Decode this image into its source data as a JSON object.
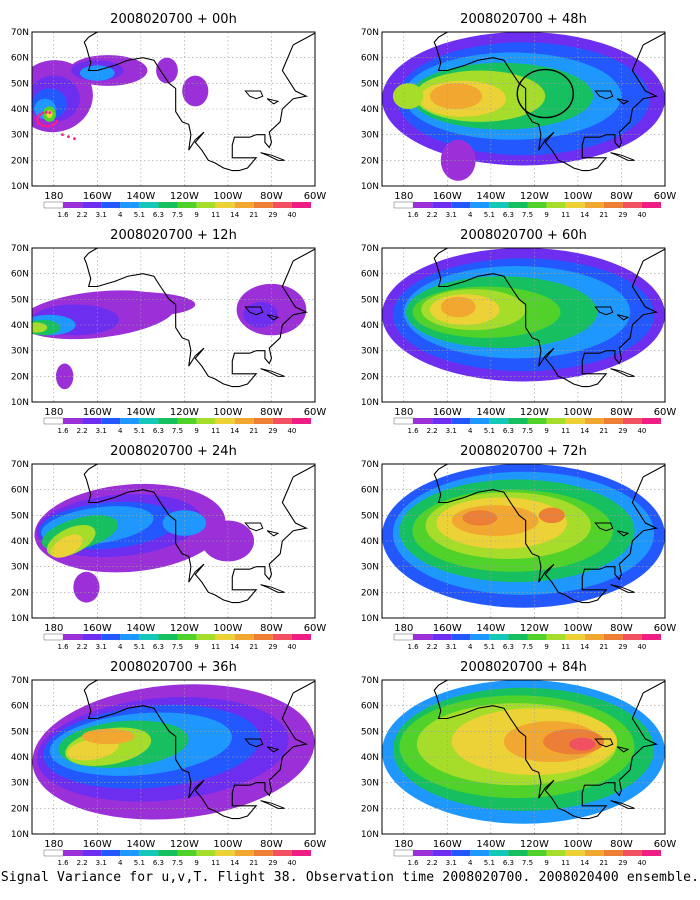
{
  "panel_titles": [
    "2008020700 + 00h",
    "2008020700 + 12h",
    "2008020700 + 24h",
    "2008020700 + 36h",
    "2008020700 + 48h",
    "2008020700 + 60h",
    "2008020700 + 72h",
    "2008020700 + 84h"
  ],
  "lat_labels": [
    "70N",
    "60N",
    "50N",
    "40N",
    "30N",
    "20N",
    "10N"
  ],
  "lon_labels": [
    "180",
    "160W",
    "140W",
    "120W",
    "100W",
    "80W",
    "60W"
  ],
  "colorbar": {
    "labels": [
      "1.6",
      "2.2",
      "3.1",
      "4",
      "5.1",
      "6.3",
      "7.5",
      "9",
      "11",
      "14",
      "21",
      "29",
      "40"
    ],
    "colors": [
      "#9b30d8",
      "#6e2ef0",
      "#2458ff",
      "#1e98ff",
      "#14c8b8",
      "#16c060",
      "#50d22a",
      "#a6dc2a",
      "#ecd236",
      "#f2a830",
      "#ec7e36",
      "#f05060",
      "#ee1e82"
    ]
  },
  "caption": "Signal Variance for u,v,T. Flight 38. Observation time 2008020700. 2008020400 ensemble.",
  "colors": {
    "background": "#ffffff",
    "coastline": "#000000",
    "grid": "#a0a0a0"
  }
}
